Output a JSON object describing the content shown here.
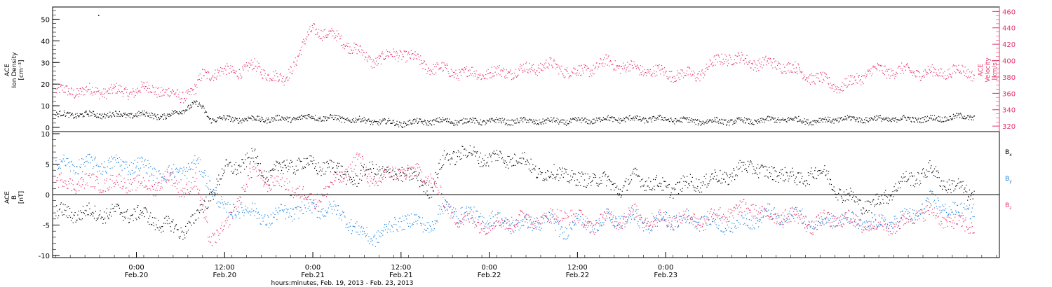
{
  "chart_data": [
    {
      "type": "scatter",
      "panel": "top",
      "title": "",
      "ylabel_left": [
        "ACE",
        "Ion Density",
        "[cm⁻³]"
      ],
      "ylabel_right": [
        "ACE",
        "Velocity",
        "[km/s]"
      ],
      "ylim_left": [
        0,
        55
      ],
      "ylim_right": [
        315,
        462
      ],
      "yticks_left": [
        "0",
        "10",
        "20",
        "30",
        "40",
        "50"
      ],
      "yticks_right": [
        "320",
        "340",
        "360",
        "380",
        "400",
        "420",
        "440",
        "460"
      ],
      "grid": false,
      "x_unit": "hours since Feb.20 00:00",
      "series": [
        {
          "name": "Ion Density",
          "axis": "left",
          "color": "#000000",
          "x": [
            0,
            2,
            4,
            6,
            8,
            9,
            10,
            14,
            16,
            20,
            24,
            28,
            32,
            36,
            40,
            44,
            48,
            52,
            56,
            60,
            64,
            68,
            72,
            76,
            80,
            84,
            88,
            92,
            96,
            100,
            104,
            108,
            112,
            114
          ],
          "y": [
            6,
            6,
            5,
            8,
            11,
            9,
            4,
            4,
            4,
            4,
            5,
            4,
            3,
            2,
            3,
            3,
            3,
            3,
            3,
            3,
            4,
            4,
            4,
            3,
            3,
            3,
            4,
            3,
            4,
            4,
            4,
            4,
            5,
            5
          ]
        },
        {
          "name": "Velocity",
          "axis": "right",
          "color": "#e8346a",
          "x": [
            0,
            2,
            4,
            6,
            8,
            9,
            10,
            14,
            16,
            20,
            24,
            28,
            32,
            36,
            40,
            44,
            48,
            52,
            56,
            60,
            64,
            68,
            72,
            76,
            80,
            84,
            88,
            92,
            96,
            100,
            104,
            108,
            112,
            114
          ],
          "y": [
            363,
            368,
            360,
            358,
            363,
            384,
            385,
            388,
            393,
            375,
            440,
            425,
            400,
            410,
            392,
            385,
            385,
            388,
            395,
            385,
            398,
            390,
            385,
            382,
            405,
            398,
            395,
            380,
            368,
            388,
            388,
            385,
            388,
            385
          ]
        }
      ]
    },
    {
      "type": "scatter",
      "panel": "bottom",
      "title": "",
      "ylabel_left": [
        "ACE",
        "B",
        "[nT]"
      ],
      "ylim": [
        -10,
        10
      ],
      "yticks": [
        "-10",
        "-5",
        "0",
        "5",
        "10"
      ],
      "zero_line": true,
      "grid": false,
      "legend_position": "right",
      "x_unit": "hours since Feb.20 00:00",
      "series": [
        {
          "name": "B",
          "subscript": "x",
          "color": "#000000",
          "x": [
            0,
            2,
            4,
            6,
            8,
            10,
            12,
            14,
            16,
            18,
            20,
            24,
            28,
            30,
            32,
            34,
            36,
            40,
            42,
            44,
            48,
            52,
            56,
            58,
            60,
            62,
            64,
            66,
            68,
            70,
            72,
            76,
            80,
            84,
            86,
            88,
            90,
            92,
            94,
            96,
            100,
            104,
            106,
            108,
            110,
            112,
            114
          ],
          "y": [
            -3,
            -4,
            -5,
            -6,
            -4,
            0,
            4,
            5,
            6,
            3,
            5,
            5,
            4,
            2,
            5,
            3,
            4,
            1,
            6,
            7,
            6,
            6,
            3,
            4,
            2,
            3,
            2,
            1,
            3,
            2,
            1,
            2,
            3,
            5,
            3,
            4,
            2,
            4,
            3,
            0,
            -2,
            2,
            3,
            4,
            2,
            1,
            0
          ]
        },
        {
          "name": "B",
          "subscript": "y",
          "color": "#1a82e0",
          "x": [
            0,
            2,
            4,
            6,
            8,
            10,
            12,
            14,
            16,
            18,
            20,
            24,
            28,
            30,
            32,
            34,
            36,
            40,
            42,
            44,
            48,
            52,
            56,
            58,
            60,
            62,
            64,
            66,
            68,
            70,
            72,
            76,
            80,
            84,
            86,
            88,
            90,
            92,
            94,
            96,
            100,
            104,
            106,
            108,
            110,
            112,
            114
          ],
          "y": [
            5,
            4,
            3,
            4,
            5,
            2,
            -3,
            -2,
            -3,
            -4,
            -3,
            -2,
            -3,
            -6,
            -7,
            -6,
            -4,
            -5,
            -2,
            -3,
            -4,
            -5,
            -4,
            -6,
            -4,
            -5,
            -4,
            -4,
            -4,
            -5,
            -4,
            -4,
            -5,
            -4,
            -3,
            -4,
            -3,
            -5,
            -4,
            -4,
            -5,
            -4,
            -3,
            -1,
            -2,
            -3,
            -2
          ]
        },
        {
          "name": "B",
          "subscript": "z",
          "color": "#e8346a",
          "x": [
            0,
            2,
            4,
            6,
            8,
            10,
            12,
            14,
            16,
            18,
            20,
            24,
            28,
            30,
            32,
            34,
            36,
            40,
            42,
            44,
            48,
            52,
            56,
            58,
            60,
            62,
            64,
            66,
            68,
            70,
            72,
            76,
            80,
            84,
            86,
            88,
            90,
            92,
            94,
            96,
            100,
            104,
            106,
            108,
            110,
            112,
            114
          ],
          "y": [
            2,
            1,
            3,
            1,
            2,
            -7,
            -6,
            0,
            4,
            2,
            2,
            -1,
            3,
            6,
            2,
            3,
            4,
            3,
            -2,
            -4,
            -5,
            -4,
            -4,
            -3,
            -4,
            -5,
            -4,
            -4,
            -3,
            -4,
            -4,
            -4,
            -3,
            -2,
            -4,
            -3,
            -4,
            -5,
            -4,
            -4,
            -5,
            -5,
            -3,
            -3,
            -4,
            -5,
            -5
          ]
        }
      ]
    }
  ],
  "x_axis": {
    "ticks": [
      {
        "time": "0:00",
        "date": "Feb.20"
      },
      {
        "time": "12:00",
        "date": "Feb.20"
      },
      {
        "time": "0:00",
        "date": "Feb.21"
      },
      {
        "time": "12:00",
        "date": "Feb.21"
      },
      {
        "time": "0:00",
        "date": "Feb.22"
      },
      {
        "time": "12:00",
        "date": "Feb.22"
      },
      {
        "time": "0:00",
        "date": "Feb.23"
      }
    ],
    "xlabel": "hours:minutes, Feb. 19, 2013 - Feb. 23, 2013"
  },
  "outlier_note_values": {
    "density_top_point": 52
  }
}
